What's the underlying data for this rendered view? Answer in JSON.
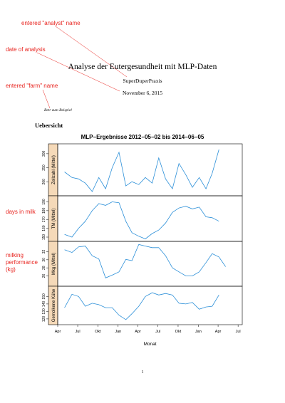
{
  "annotations": {
    "analyst": "entered \"analyst\" name",
    "date": "date of analysis",
    "farm": "entered \"farm\" name",
    "days_in_milk": "days in milk",
    "milking_perf_1": "milking",
    "milking_perf_2": "performance",
    "milking_perf_3": "(kg)",
    "color": "#e8231e"
  },
  "document": {
    "title": "Analyse der Eutergesundheit mit MLP-Daten",
    "author": "SuperDuperPraxis",
    "date": "November 6, 2015",
    "farm": "Betr zum Beispiel",
    "section": "Uebersicht",
    "page_number": "1"
  },
  "chart_data": {
    "type": "line",
    "title": "MLP−Ergebnisse 2012−05−02 bis 2014−06−05",
    "xlabel": "Monat",
    "x_ticks": [
      "Apr",
      "Jul",
      "Okt",
      "Jan",
      "Apr",
      "Jul",
      "Okt",
      "Jan",
      "Apr",
      "Jul"
    ],
    "x": [
      "2012-05-02",
      "2012-06-05",
      "2012-07-05",
      "2012-08-05",
      "2012-09-05",
      "2012-10-05",
      "2012-11-05",
      "2012-12-05",
      "2013-01-05",
      "2013-02-05",
      "2013-03-05",
      "2013-04-05",
      "2013-05-05",
      "2013-06-05",
      "2013-07-05",
      "2013-08-05",
      "2013-09-05",
      "2013-10-05",
      "2013-11-05",
      "2013-12-05",
      "2014-01-05",
      "2014-02-05",
      "2014-03-05",
      "2014-04-05",
      "2014-05-05",
      "2014-06-05"
    ],
    "line_color": "#2b8fd8",
    "strip_color": "#f5d9b8",
    "panels": [
      {
        "name": "Zellzahl (Mittel)",
        "ylim": [
          165,
          320
        ],
        "y_ticks": [
          200,
          250,
          300
        ],
        "values": [
          235,
          215,
          210,
          195,
          165,
          215,
          175,
          250,
          305,
          185,
          200,
          190,
          215,
          195,
          285,
          210,
          175,
          265,
          225,
          180,
          215,
          175,
          230,
          315,
          null,
          null
        ]
      },
      {
        "name": "TM (Mittel)",
        "ylim": [
          150,
          192
        ],
        "y_ticks": [
          150,
          160,
          170,
          180,
          190
        ],
        "values": [
          153,
          150,
          160,
          168,
          180,
          188,
          186,
          190,
          189,
          168,
          155,
          151,
          148,
          154,
          158,
          166,
          178,
          183,
          185,
          182,
          184,
          173,
          172,
          168,
          null,
          null
        ]
      },
      {
        "name": "Mkg (Mittel)",
        "ylim": [
          24.5,
          33.5
        ],
        "y_ticks": [
          26,
          28,
          30,
          32
        ],
        "values": [
          32.5,
          31.8,
          33.2,
          33.4,
          31.0,
          30.2,
          25.5,
          26.2,
          27.0,
          30.1,
          29.8,
          33.8,
          33.4,
          33.0,
          33.0,
          31.0,
          28.0,
          27.0,
          26.0,
          26.0,
          27.0,
          29.3,
          31.5,
          30.7,
          28.3,
          null
        ]
      },
      {
        "name": "Gemolkene Kühe",
        "ylim": [
          118,
          158
        ],
        "y_ticks": [
          120,
          130,
          140,
          150
        ],
        "values": [
          135,
          153,
          150,
          137,
          141,
          139,
          135,
          135,
          125,
          119,
          127,
          137,
          150,
          155,
          152,
          154,
          152,
          141,
          140,
          142,
          133,
          136,
          137,
          152,
          null,
          null
        ]
      }
    ]
  }
}
